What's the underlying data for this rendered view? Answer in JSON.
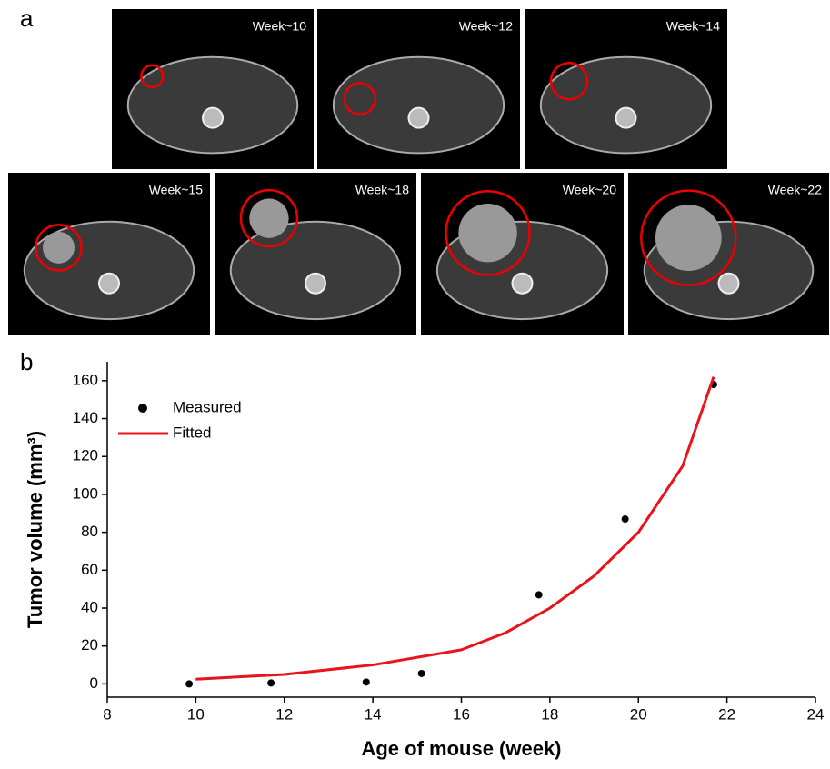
{
  "panel_labels": [
    "a",
    "b"
  ],
  "images": [
    {
      "label": "Week~10"
    },
    {
      "label": "Week~12"
    },
    {
      "label": "Week~14"
    },
    {
      "label": "Week~15"
    },
    {
      "label": "Week~18"
    },
    {
      "label": "Week~20"
    },
    {
      "label": "Week~22"
    }
  ],
  "chart_data": {
    "type": "scatter",
    "x_label": "Age of mouse (week)",
    "y_label": "Tumor volume (mm³)",
    "xlim": [
      8,
      24
    ],
    "xticks": [
      8,
      10,
      12,
      14,
      16,
      18,
      20,
      22,
      24
    ],
    "ylim": [
      -7,
      170
    ],
    "yticks": [
      0,
      20,
      40,
      60,
      80,
      100,
      120,
      140,
      160
    ],
    "legend": "top-left",
    "series": [
      {
        "name": "Measured",
        "color": "#000000",
        "mode": "markers",
        "x": [
          9.85,
          11.7,
          13.85,
          15.1,
          17.75,
          19.7,
          21.7
        ],
        "values": [
          0,
          0.5,
          1,
          5.5,
          47,
          87,
          158
        ]
      },
      {
        "name": "Fitted",
        "color": "#e8141b",
        "mode": "lines",
        "x": [
          10,
          12,
          14,
          16,
          17,
          18,
          19,
          20,
          21,
          21.7
        ],
        "values": [
          2.5,
          5,
          10,
          18,
          27,
          40,
          57,
          80,
          115,
          162
        ]
      }
    ]
  }
}
